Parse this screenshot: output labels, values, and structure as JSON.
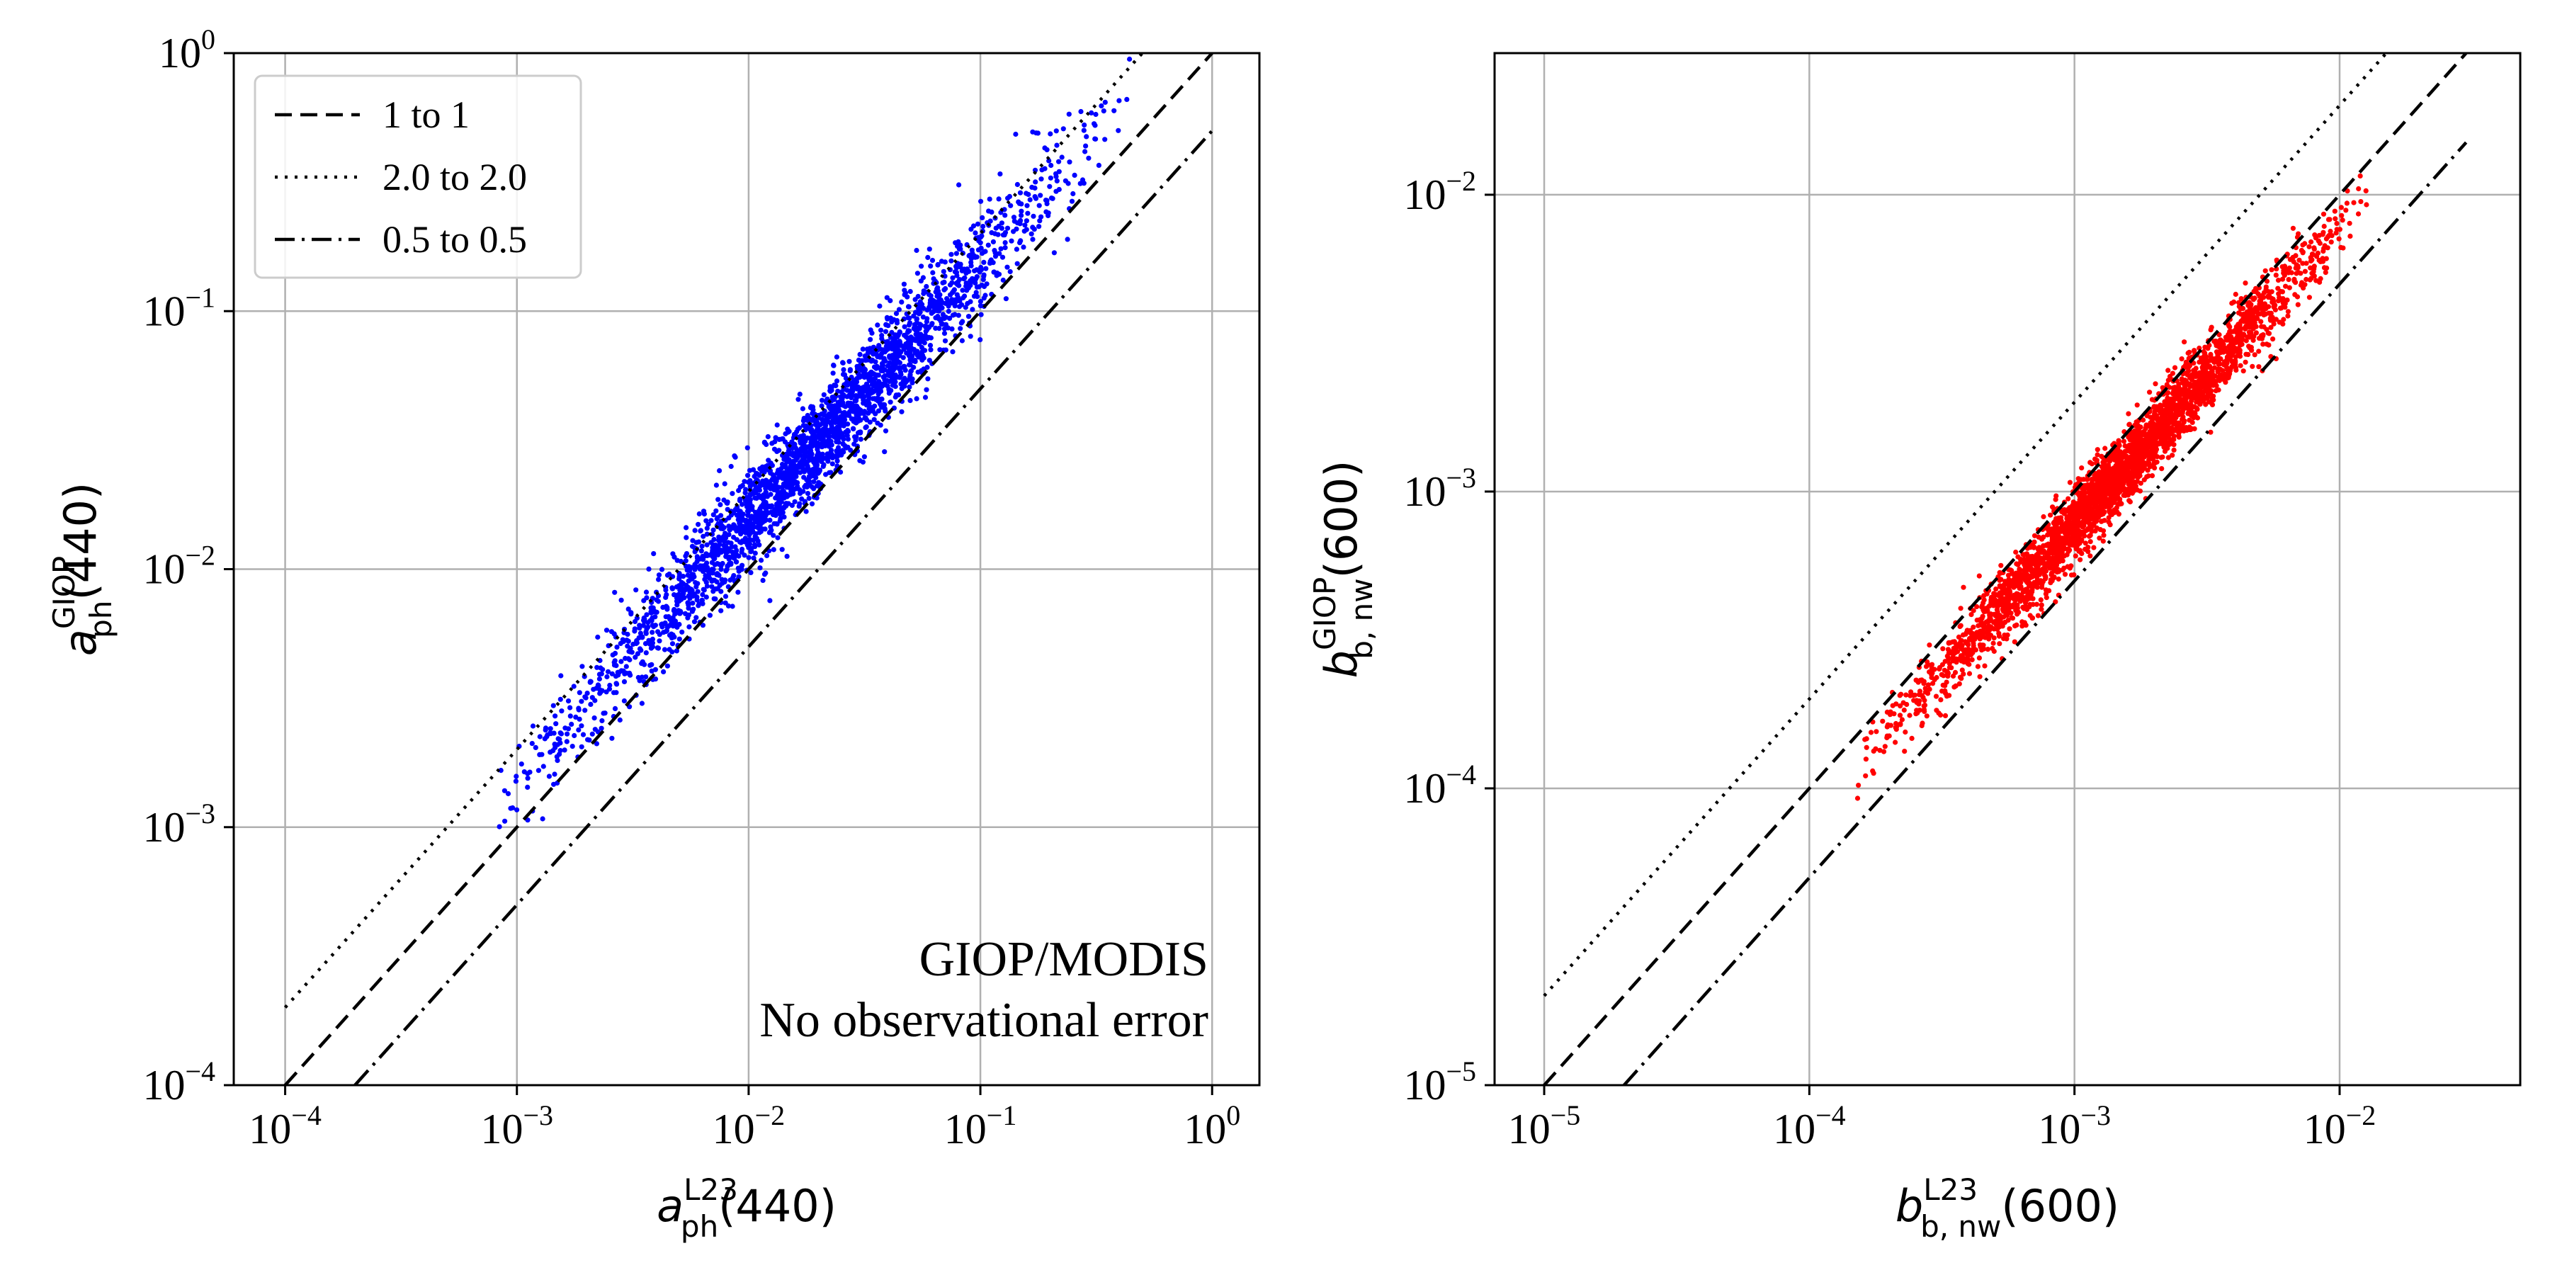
{
  "chart_data": [
    {
      "type": "scatter",
      "scale": "log-log",
      "xlabel": "a_ph^L23(440)",
      "xlabel_base": "a",
      "xlabel_sub": "ph",
      "xlabel_sup": "L23",
      "xlabel_arg": "(440)",
      "ylabel": "a_ph^GIOP(440)",
      "ylabel_base": "a",
      "ylabel_sub": "ph",
      "ylabel_sup": "GIOP",
      "ylabel_arg": "(440)",
      "xlim": [
        6e-05,
        1.6
      ],
      "ylim": [
        0.0001,
        1.0
      ],
      "x_ticks": [
        0.0001,
        0.001,
        0.01,
        0.1,
        1
      ],
      "x_tick_labels": [
        {
          "base": "10",
          "exp": "−4"
        },
        {
          "base": "10",
          "exp": "−3"
        },
        {
          "base": "10",
          "exp": "−2"
        },
        {
          "base": "10",
          "exp": "−1"
        },
        {
          "base": "10",
          "exp": "0"
        }
      ],
      "y_ticks": [
        0.0001,
        0.001,
        0.01,
        0.1,
        1
      ],
      "y_tick_labels": [
        {
          "base": "10",
          "exp": "−4"
        },
        {
          "base": "10",
          "exp": "−3"
        },
        {
          "base": "10",
          "exp": "−2"
        },
        {
          "base": "10",
          "exp": "−1"
        },
        {
          "base": "10",
          "exp": "0"
        }
      ],
      "grid": true,
      "point_color": "#0000ff",
      "point_count": 2600,
      "cloud": {
        "x_range": [
          0.0008,
          0.45
        ],
        "y_over_x_median": 1.55,
        "y_over_x_spread_log10": 0.1
      },
      "reference_lines": [
        {
          "label": "1 to 1",
          "ratio": 1.0,
          "style": "dashed",
          "x_range": [
            0.0001,
            1.0
          ]
        },
        {
          "label": "2.0 to 2.0",
          "ratio": 2.0,
          "style": "dotted",
          "x_range": [
            0.0001,
            0.5
          ]
        },
        {
          "label": "0.5 to 0.5",
          "ratio": 0.5,
          "style": "dashdot",
          "x_range": [
            0.0002,
            1.0
          ]
        }
      ],
      "legend_position": "upper-left",
      "annotation": [
        "GIOP/MODIS",
        "No observational error"
      ]
    },
    {
      "type": "scatter",
      "scale": "log-log",
      "xlabel": "b_b,nw^L23(600)",
      "xlabel_base": "b",
      "xlabel_sub": "b, nw",
      "xlabel_sup": "L23",
      "xlabel_arg": "(600)",
      "ylabel": "b_b,nw^GIOP(600)",
      "ylabel_base": "b",
      "ylabel_sub": "b, nw",
      "ylabel_sup": "GIOP",
      "ylabel_arg": "(600)",
      "xlim": [
        6.5e-06,
        0.048
      ],
      "ylim": [
        1e-05,
        0.03
      ],
      "x_ticks": [
        1e-05,
        0.0001,
        0.001,
        0.01
      ],
      "x_tick_labels": [
        {
          "base": "10",
          "exp": "−5"
        },
        {
          "base": "10",
          "exp": "−4"
        },
        {
          "base": "10",
          "exp": "−3"
        },
        {
          "base": "10",
          "exp": "−2"
        }
      ],
      "y_ticks": [
        1e-05,
        0.0001,
        0.001,
        0.01
      ],
      "y_tick_labels": [
        {
          "base": "10",
          "exp": "−5"
        },
        {
          "base": "10",
          "exp": "−4"
        },
        {
          "base": "10",
          "exp": "−3"
        },
        {
          "base": "10",
          "exp": "−2"
        }
      ],
      "grid": true,
      "point_color": "#ff0000",
      "point_count": 3200,
      "cloud": {
        "x_range": [
          0.00015,
          0.013
        ],
        "y_over_x_median": 0.78,
        "y_over_x_spread_log10": 0.06
      },
      "reference_lines": [
        {
          "label": "1 to 1",
          "ratio": 1.0,
          "style": "dashed",
          "x_range": [
            1e-05,
            0.03
          ]
        },
        {
          "label": "2.0 to 2.0",
          "ratio": 2.0,
          "style": "dotted",
          "x_range": [
            1e-05,
            0.015
          ]
        },
        {
          "label": "0.5 to 0.5",
          "ratio": 0.5,
          "style": "dashdot",
          "x_range": [
            2e-05,
            0.03
          ]
        }
      ]
    }
  ]
}
